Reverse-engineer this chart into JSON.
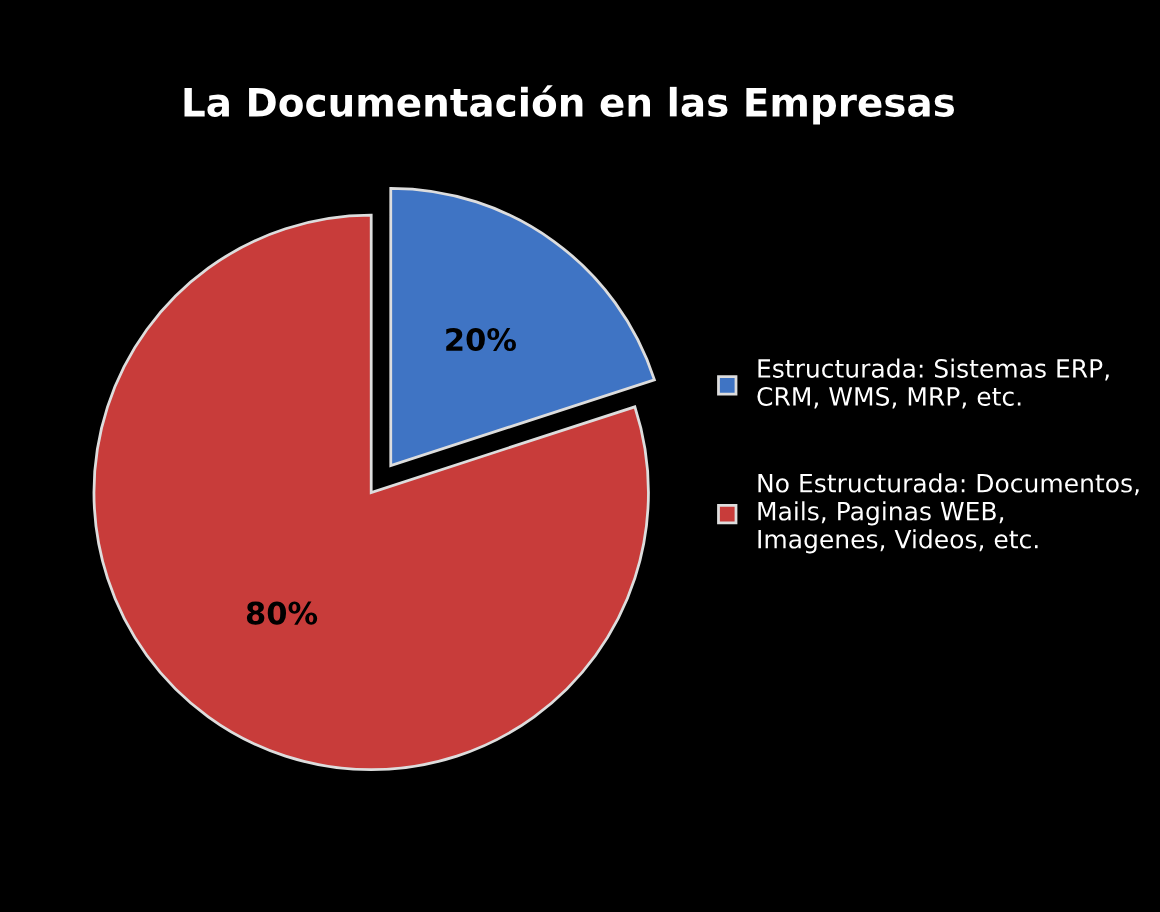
{
  "chart_data": {
    "type": "pie",
    "title": "La Documentación en las Empresas",
    "categories": [
      "Estructurada: Sistemas ERP,\nCRM, WMS, MRP, etc.",
      "No Estructurada: Documentos,\nMails, Paginas WEB,\nImagenes, Videos, etc."
    ],
    "values": [
      20,
      80
    ],
    "colors": [
      "#3f74c4",
      "#c83c3a"
    ],
    "value_labels": [
      "20%",
      "80%"
    ],
    "legend": "right"
  }
}
